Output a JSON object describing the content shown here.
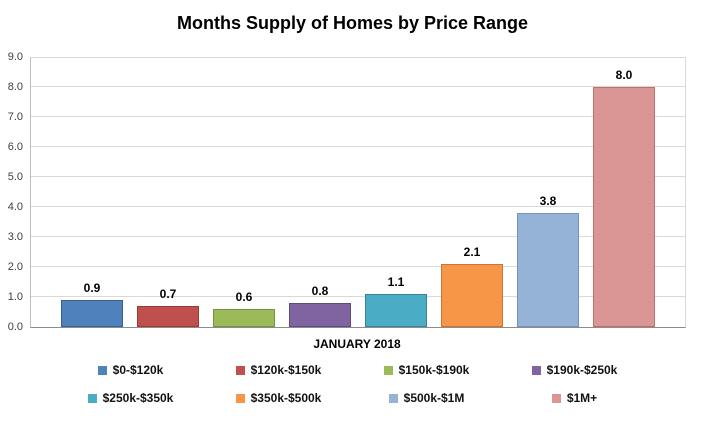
{
  "chart_data": {
    "type": "bar",
    "title": "Months Supply of Homes by Price Range",
    "xlabel": "JANUARY 2018",
    "ylabel": "",
    "ylim": [
      0,
      9
    ],
    "ytick_interval": 1.0,
    "ytick_labels": [
      "0.0",
      "1.0",
      "2.0",
      "3.0",
      "4.0",
      "5.0",
      "6.0",
      "7.0",
      "8.0",
      "9.0"
    ],
    "grid": true,
    "legend_position": "bottom",
    "categories": [
      "$0-$120k",
      "$120k-$150k",
      "$150k-$190k",
      "$190k-$250k",
      "$250k-$350k",
      "$350k-$500k",
      "$500k-$1M",
      "$1M+"
    ],
    "values": [
      0.9,
      0.7,
      0.6,
      0.8,
      1.1,
      2.1,
      3.8,
      8.0
    ],
    "value_labels": [
      "0.9",
      "0.7",
      "0.6",
      "0.8",
      "1.1",
      "2.1",
      "3.8",
      "8.0"
    ],
    "colors": [
      "#4F81BD",
      "#C0504D",
      "#9BBB59",
      "#8064A2",
      "#4BACC6",
      "#F79646",
      "#95B3D7",
      "#D99694"
    ],
    "border_colors": [
      "#3A6191",
      "#943C3A",
      "#769243",
      "#614B7D",
      "#38849A",
      "#C97636",
      "#7293BD",
      "#C06F6D"
    ]
  },
  "colors": {
    "gridline": "#d9d9d9",
    "axis_line": "#8c8c8c",
    "tick_label": "#3f3f3f",
    "title": "#000000",
    "background": "#ffffff"
  }
}
